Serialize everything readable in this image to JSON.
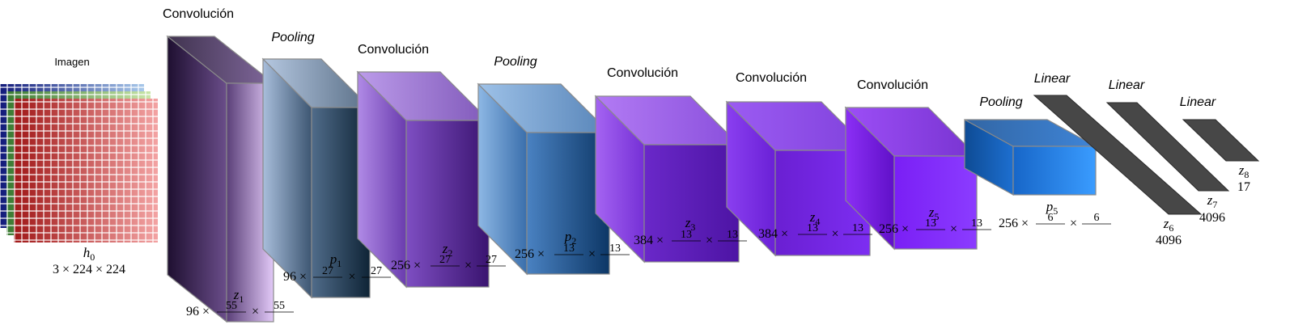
{
  "image": {
    "label": "Imagen",
    "var": "h",
    "sub": "0",
    "dims": "3 × 224 × 224"
  },
  "layers": [
    {
      "title": "Convolución",
      "var": "z",
      "sub": "1",
      "channels": "96 ×",
      "d1": "55",
      "d2": "55"
    },
    {
      "title": "Pooling",
      "var": "p",
      "sub": "1",
      "channels": "96 ×",
      "d1": "27",
      "d2": "27"
    },
    {
      "title": "Convolución",
      "var": "z",
      "sub": "2",
      "channels": "256 ×",
      "d1": "27",
      "d2": "27"
    },
    {
      "title": "Pooling",
      "var": "p",
      "sub": "2",
      "channels": "256 ×",
      "d1": "13",
      "d2": "13"
    },
    {
      "title": "Convolución",
      "var": "z",
      "sub": "3",
      "channels": "384 ×",
      "d1": "13",
      "d2": "13"
    },
    {
      "title": "Convolución",
      "var": "z",
      "sub": "4",
      "channels": "384 ×",
      "d1": "13",
      "d2": "13"
    },
    {
      "title": "Convolución",
      "var": "z",
      "sub": "5",
      "channels": "256 ×",
      "d1": "13",
      "d2": "13"
    },
    {
      "title": "Pooling",
      "var": "p",
      "sub": "5",
      "channels": "256 ×",
      "d1": "6",
      "d2": "6"
    }
  ],
  "linear": [
    {
      "title": "Linear",
      "var": "z",
      "sub": "6",
      "size": "4096"
    },
    {
      "title": "Linear",
      "var": "z",
      "sub": "7",
      "size": "4096"
    },
    {
      "title": "Linear",
      "var": "z",
      "sub": "8",
      "size": "17"
    }
  ],
  "times": "×"
}
